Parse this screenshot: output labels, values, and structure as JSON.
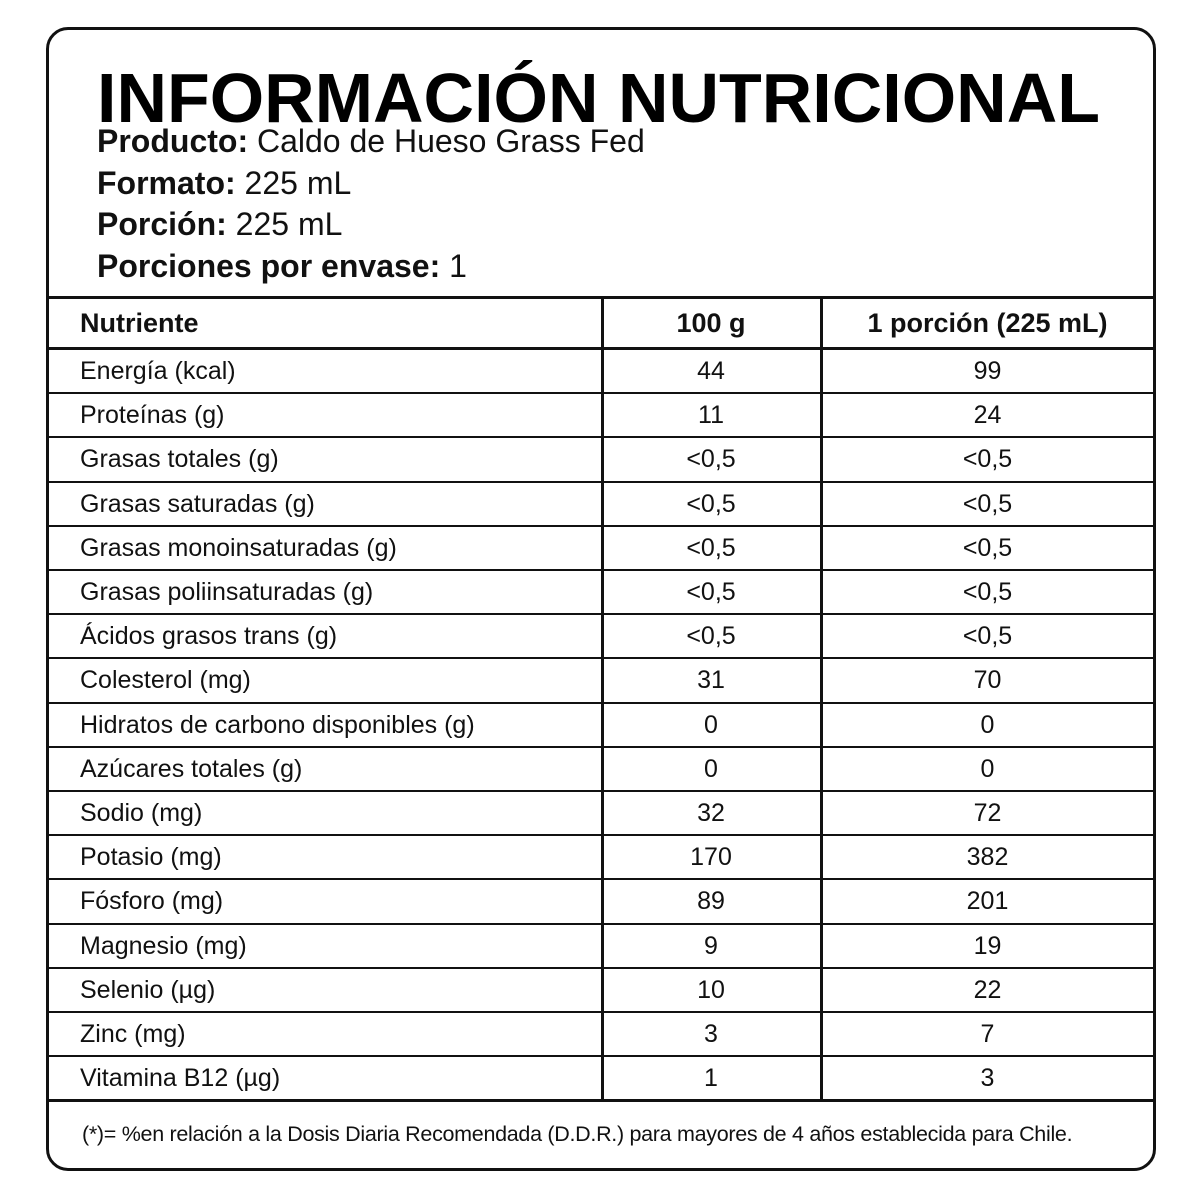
{
  "header": {
    "title": "INFORMACIÓN NUTRICIONAL",
    "fields": [
      {
        "label": "Producto:",
        "value": "Caldo de Hueso Grass Fed"
      },
      {
        "label": "Formato:",
        "value": "225 mL"
      },
      {
        "label": "Porción:",
        "value": "225 mL"
      },
      {
        "label": "Porciones por envase:",
        "value": "1"
      }
    ]
  },
  "table": {
    "columns": [
      "Nutriente",
      "100 g",
      "1 porción (225 mL)"
    ],
    "rows": [
      [
        "Energía (kcal)",
        "44",
        "99"
      ],
      [
        "Proteínas (g)",
        "11",
        "24"
      ],
      [
        "Grasas totales (g)",
        "<0,5",
        "<0,5"
      ],
      [
        "Grasas saturadas (g)",
        "<0,5",
        "<0,5"
      ],
      [
        "Grasas monoinsaturadas (g)",
        "<0,5",
        "<0,5"
      ],
      [
        "Grasas poliinsaturadas (g)",
        "<0,5",
        "<0,5"
      ],
      [
        "Ácidos grasos trans (g)",
        "<0,5",
        "<0,5"
      ],
      [
        "Colesterol (mg)",
        "31",
        "70"
      ],
      [
        "Hidratos de carbono disponibles (g)",
        "0",
        "0"
      ],
      [
        "Azúcares totales (g)",
        "0",
        "0"
      ],
      [
        "Sodio (mg)",
        "32",
        "72"
      ],
      [
        "Potasio (mg)",
        "170",
        "382"
      ],
      [
        "Fósforo (mg)",
        "89",
        "201"
      ],
      [
        "Magnesio (mg)",
        "9",
        "19"
      ],
      [
        "Selenio (µg)",
        "10",
        "22"
      ],
      [
        "Zinc (mg)",
        "3",
        "7"
      ],
      [
        "Vitamina B12 (µg)",
        "1",
        "3"
      ]
    ]
  },
  "footnote": "(*)= %en relación a la Dosis Diaria Recomendada (D.D.R.) para mayores de 4 años establecida para Chile."
}
